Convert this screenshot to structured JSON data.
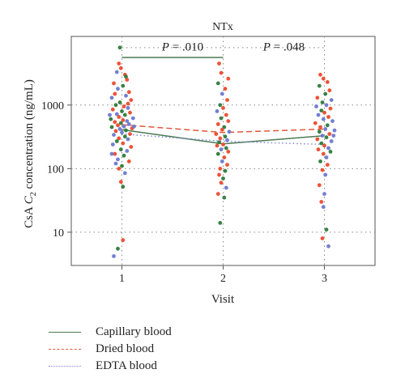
{
  "chart_data": {
    "type": "scatter",
    "title": "NTx",
    "xlabel": "Visit",
    "ylabel_prefix": "CsA ",
    "ylabel_c": "C",
    "ylabel_sub": "2",
    "ylabel_suffix": " concentration (ng/mL)",
    "y_scale": "log",
    "ylim": [
      3,
      12000
    ],
    "xlim": [
      0.5,
      3.5
    ],
    "x_ticks": [
      1,
      2,
      3
    ],
    "x_tick_labels": [
      "1",
      "2",
      "3"
    ],
    "y_ticks": [
      10,
      100,
      1000
    ],
    "y_tick_labels": [
      "10",
      "100",
      "1000"
    ],
    "grid": true,
    "series": [
      {
        "name": "Capillary blood",
        "color": "#4a7a52",
        "line_style": "solid",
        "means": [
          {
            "x": 1,
            "y": 410
          },
          {
            "x": 2,
            "y": 245
          },
          {
            "x": 3,
            "y": 330
          }
        ]
      },
      {
        "name": "Dried blood",
        "color": "#e0573a",
        "line_style": "dashed",
        "means": [
          {
            "x": 1,
            "y": 490
          },
          {
            "x": 2,
            "y": 370
          },
          {
            "x": 3,
            "y": 420
          }
        ]
      },
      {
        "name": "EDTA blood",
        "color": "#7f88d8",
        "line_style": "dotted",
        "means": [
          {
            "x": 1,
            "y": 350
          },
          {
            "x": 2,
            "y": 270
          },
          {
            "x": 3,
            "y": 240
          }
        ]
      }
    ],
    "point_colors": {
      "green": "#2e7a3a",
      "red": "#ec4a2c",
      "blue": "#6b78d0"
    },
    "points": [
      {
        "x": 0.98,
        "y": 8000,
        "c": "green"
      },
      {
        "x": 0.97,
        "y": 4500,
        "c": "red"
      },
      {
        "x": 0.99,
        "y": 3800,
        "c": "red"
      },
      {
        "x": 0.95,
        "y": 3300,
        "c": "blue"
      },
      {
        "x": 1.03,
        "y": 3000,
        "c": "red"
      },
      {
        "x": 1.05,
        "y": 2500,
        "c": "red"
      },
      {
        "x": 0.92,
        "y": 2200,
        "c": "red"
      },
      {
        "x": 1.01,
        "y": 2000,
        "c": "green"
      },
      {
        "x": 0.96,
        "y": 1800,
        "c": "blue"
      },
      {
        "x": 1.07,
        "y": 1600,
        "c": "red"
      },
      {
        "x": 0.93,
        "y": 1500,
        "c": "red"
      },
      {
        "x": 1.04,
        "y": 1400,
        "c": "blue"
      },
      {
        "x": 0.9,
        "y": 1300,
        "c": "blue"
      },
      {
        "x": 1.09,
        "y": 1200,
        "c": "red"
      },
      {
        "x": 0.98,
        "y": 1100,
        "c": "green"
      },
      {
        "x": 0.94,
        "y": 1000,
        "c": "green"
      },
      {
        "x": 1.02,
        "y": 950,
        "c": "red"
      },
      {
        "x": 1.06,
        "y": 900,
        "c": "blue"
      },
      {
        "x": 0.91,
        "y": 850,
        "c": "red"
      },
      {
        "x": 1.0,
        "y": 800,
        "c": "green"
      },
      {
        "x": 1.08,
        "y": 760,
        "c": "red"
      },
      {
        "x": 0.95,
        "y": 720,
        "c": "blue"
      },
      {
        "x": 1.03,
        "y": 700,
        "c": "green"
      },
      {
        "x": 0.97,
        "y": 650,
        "c": "red"
      },
      {
        "x": 1.11,
        "y": 620,
        "c": "blue"
      },
      {
        "x": 0.89,
        "y": 600,
        "c": "green"
      },
      {
        "x": 1.01,
        "y": 580,
        "c": "red"
      },
      {
        "x": 1.05,
        "y": 560,
        "c": "blue"
      },
      {
        "x": 0.93,
        "y": 540,
        "c": "red"
      },
      {
        "x": 0.99,
        "y": 520,
        "c": "green"
      },
      {
        "x": 1.07,
        "y": 500,
        "c": "blue"
      },
      {
        "x": 0.96,
        "y": 480,
        "c": "red"
      },
      {
        "x": 1.02,
        "y": 460,
        "c": "blue"
      },
      {
        "x": 0.9,
        "y": 450,
        "c": "green"
      },
      {
        "x": 1.1,
        "y": 430,
        "c": "red"
      },
      {
        "x": 0.98,
        "y": 420,
        "c": "blue"
      },
      {
        "x": 1.04,
        "y": 400,
        "c": "green"
      },
      {
        "x": 0.94,
        "y": 390,
        "c": "red"
      },
      {
        "x": 1.0,
        "y": 370,
        "c": "blue"
      },
      {
        "x": 1.08,
        "y": 350,
        "c": "red"
      },
      {
        "x": 0.92,
        "y": 340,
        "c": "blue"
      },
      {
        "x": 1.03,
        "y": 320,
        "c": "green"
      },
      {
        "x": 0.97,
        "y": 300,
        "c": "red"
      },
      {
        "x": 1.06,
        "y": 290,
        "c": "blue"
      },
      {
        "x": 0.95,
        "y": 270,
        "c": "green"
      },
      {
        "x": 1.01,
        "y": 250,
        "c": "red"
      },
      {
        "x": 0.91,
        "y": 240,
        "c": "blue"
      },
      {
        "x": 1.09,
        "y": 220,
        "c": "red"
      },
      {
        "x": 0.99,
        "y": 200,
        "c": "green"
      },
      {
        "x": 1.05,
        "y": 190,
        "c": "blue"
      },
      {
        "x": 0.93,
        "y": 170,
        "c": "red"
      },
      {
        "x": 1.02,
        "y": 160,
        "c": "green"
      },
      {
        "x": 0.96,
        "y": 140,
        "c": "blue"
      },
      {
        "x": 1.07,
        "y": 130,
        "c": "red"
      },
      {
        "x": 0.94,
        "y": 120,
        "c": "blue"
      },
      {
        "x": 1.0,
        "y": 110,
        "c": "green"
      },
      {
        "x": 0.97,
        "y": 100,
        "c": "red"
      },
      {
        "x": 1.03,
        "y": 85,
        "c": "blue"
      },
      {
        "x": 0.99,
        "y": 62,
        "c": "red"
      },
      {
        "x": 1.01,
        "y": 52,
        "c": "green"
      },
      {
        "x": 0.96,
        "y": 5.5,
        "c": "green"
      },
      {
        "x": 1.01,
        "y": 7.5,
        "c": "red"
      },
      {
        "x": 0.92,
        "y": 4.2,
        "c": "blue"
      },
      {
        "x": 1.04,
        "y": 2800,
        "c": "green"
      },
      {
        "x": 0.88,
        "y": 700,
        "c": "blue"
      },
      {
        "x": 1.12,
        "y": 460,
        "c": "blue"
      },
      {
        "x": 0.9,
        "y": 170,
        "c": "blue"
      },
      {
        "x": 1.06,
        "y": 1050,
        "c": "red"
      },
      {
        "x": 1.96,
        "y": 4500,
        "c": "red"
      },
      {
        "x": 1.98,
        "y": 3200,
        "c": "red"
      },
      {
        "x": 1.95,
        "y": 2200,
        "c": "green"
      },
      {
        "x": 2.02,
        "y": 1800,
        "c": "red"
      },
      {
        "x": 1.99,
        "y": 1500,
        "c": "blue"
      },
      {
        "x": 2.04,
        "y": 1200,
        "c": "red"
      },
      {
        "x": 1.97,
        "y": 1000,
        "c": "green"
      },
      {
        "x": 2.0,
        "y": 900,
        "c": "red"
      },
      {
        "x": 1.94,
        "y": 800,
        "c": "blue"
      },
      {
        "x": 2.03,
        "y": 700,
        "c": "red"
      },
      {
        "x": 1.98,
        "y": 620,
        "c": "green"
      },
      {
        "x": 2.05,
        "y": 560,
        "c": "red"
      },
      {
        "x": 1.95,
        "y": 500,
        "c": "red"
      },
      {
        "x": 2.01,
        "y": 450,
        "c": "green"
      },
      {
        "x": 1.99,
        "y": 410,
        "c": "red"
      },
      {
        "x": 2.06,
        "y": 380,
        "c": "blue"
      },
      {
        "x": 1.93,
        "y": 350,
        "c": "red"
      },
      {
        "x": 2.02,
        "y": 320,
        "c": "green"
      },
      {
        "x": 1.97,
        "y": 300,
        "c": "red"
      },
      {
        "x": 2.04,
        "y": 280,
        "c": "blue"
      },
      {
        "x": 1.96,
        "y": 260,
        "c": "green"
      },
      {
        "x": 2.0,
        "y": 240,
        "c": "red"
      },
      {
        "x": 1.94,
        "y": 230,
        "c": "red"
      },
      {
        "x": 2.03,
        "y": 210,
        "c": "green"
      },
      {
        "x": 1.98,
        "y": 200,
        "c": "blue"
      },
      {
        "x": 2.05,
        "y": 185,
        "c": "red"
      },
      {
        "x": 1.95,
        "y": 170,
        "c": "green"
      },
      {
        "x": 2.01,
        "y": 150,
        "c": "red"
      },
      {
        "x": 1.99,
        "y": 130,
        "c": "blue"
      },
      {
        "x": 2.04,
        "y": 115,
        "c": "red"
      },
      {
        "x": 1.97,
        "y": 100,
        "c": "red"
      },
      {
        "x": 2.02,
        "y": 92,
        "c": "green"
      },
      {
        "x": 1.96,
        "y": 80,
        "c": "red"
      },
      {
        "x": 2.0,
        "y": 70,
        "c": "green"
      },
      {
        "x": 1.98,
        "y": 60,
        "c": "red"
      },
      {
        "x": 2.03,
        "y": 50,
        "c": "blue"
      },
      {
        "x": 1.95,
        "y": 40,
        "c": "red"
      },
      {
        "x": 2.01,
        "y": 35,
        "c": "green"
      },
      {
        "x": 1.97,
        "y": 14,
        "c": "green"
      },
      {
        "x": 2.05,
        "y": 2600,
        "c": "red"
      },
      {
        "x": 2.96,
        "y": 3000,
        "c": "red"
      },
      {
        "x": 2.99,
        "y": 2600,
        "c": "red"
      },
      {
        "x": 3.03,
        "y": 2300,
        "c": "red"
      },
      {
        "x": 2.95,
        "y": 2000,
        "c": "green"
      },
      {
        "x": 3.05,
        "y": 1700,
        "c": "red"
      },
      {
        "x": 3.01,
        "y": 1500,
        "c": "green"
      },
      {
        "x": 2.93,
        "y": 1300,
        "c": "red"
      },
      {
        "x": 3.07,
        "y": 1200,
        "c": "blue"
      },
      {
        "x": 2.98,
        "y": 1100,
        "c": "green"
      },
      {
        "x": 3.02,
        "y": 1000,
        "c": "blue"
      },
      {
        "x": 2.92,
        "y": 950,
        "c": "blue"
      },
      {
        "x": 3.06,
        "y": 880,
        "c": "red"
      },
      {
        "x": 2.97,
        "y": 820,
        "c": "green"
      },
      {
        "x": 3.0,
        "y": 760,
        "c": "red"
      },
      {
        "x": 2.94,
        "y": 700,
        "c": "blue"
      },
      {
        "x": 3.04,
        "y": 650,
        "c": "red"
      },
      {
        "x": 2.99,
        "y": 600,
        "c": "blue"
      },
      {
        "x": 3.08,
        "y": 560,
        "c": "blue"
      },
      {
        "x": 2.91,
        "y": 520,
        "c": "red"
      },
      {
        "x": 3.03,
        "y": 480,
        "c": "green"
      },
      {
        "x": 2.96,
        "y": 450,
        "c": "red"
      },
      {
        "x": 3.01,
        "y": 420,
        "c": "blue"
      },
      {
        "x": 3.1,
        "y": 400,
        "c": "blue"
      },
      {
        "x": 2.95,
        "y": 380,
        "c": "green"
      },
      {
        "x": 3.05,
        "y": 350,
        "c": "red"
      },
      {
        "x": 2.98,
        "y": 330,
        "c": "blue"
      },
      {
        "x": 3.02,
        "y": 310,
        "c": "green"
      },
      {
        "x": 2.93,
        "y": 290,
        "c": "red"
      },
      {
        "x": 3.07,
        "y": 270,
        "c": "blue"
      },
      {
        "x": 2.97,
        "y": 250,
        "c": "green"
      },
      {
        "x": 3.0,
        "y": 230,
        "c": "red"
      },
      {
        "x": 3.04,
        "y": 210,
        "c": "blue"
      },
      {
        "x": 2.94,
        "y": 200,
        "c": "red"
      },
      {
        "x": 3.06,
        "y": 185,
        "c": "green"
      },
      {
        "x": 2.99,
        "y": 170,
        "c": "red"
      },
      {
        "x": 3.02,
        "y": 150,
        "c": "blue"
      },
      {
        "x": 2.96,
        "y": 130,
        "c": "green"
      },
      {
        "x": 3.03,
        "y": 115,
        "c": "red"
      },
      {
        "x": 2.98,
        "y": 95,
        "c": "red"
      },
      {
        "x": 3.01,
        "y": 80,
        "c": "blue"
      },
      {
        "x": 2.95,
        "y": 55,
        "c": "red"
      },
      {
        "x": 3.0,
        "y": 40,
        "c": "blue"
      },
      {
        "x": 2.97,
        "y": 30,
        "c": "red"
      },
      {
        "x": 2.99,
        "y": 25,
        "c": "blue"
      },
      {
        "x": 3.02,
        "y": 11,
        "c": "green"
      },
      {
        "x": 2.98,
        "y": 8,
        "c": "red"
      },
      {
        "x": 3.04,
        "y": 6,
        "c": "blue"
      },
      {
        "x": 3.09,
        "y": 330,
        "c": "blue"
      }
    ],
    "annotations": [
      {
        "prefix": "P",
        "text": " = .010",
        "x": 1.6,
        "y": 7200,
        "bracket_from": 1,
        "bracket_to": 2,
        "bracket_y": 5600
      },
      {
        "prefix": "P",
        "text": " = .048",
        "x": 2.6,
        "y": 7200
      }
    ],
    "top_dotted_level": 8000
  },
  "legend": [
    {
      "label": "Capillary blood",
      "color": "#4a7a52",
      "style": "solid"
    },
    {
      "label": "Dried blood",
      "color": "#e0573a",
      "style": "dashed"
    },
    {
      "label": "EDTA blood",
      "color": "#7f88d8",
      "style": "dotted"
    }
  ]
}
